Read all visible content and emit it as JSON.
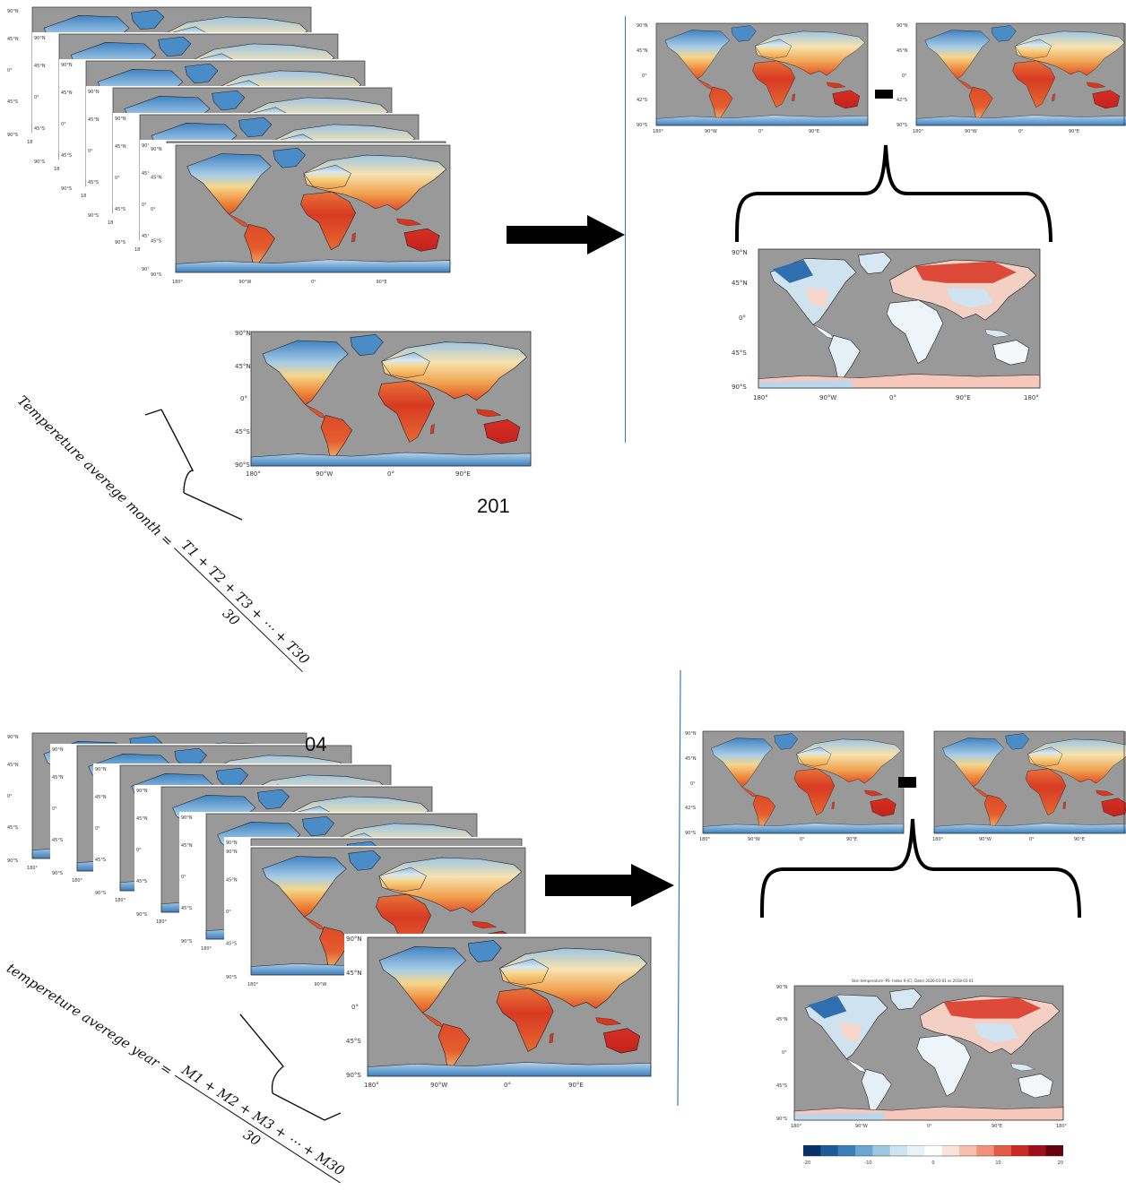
{
  "axes": {
    "lat": [
      "90°N",
      "45°N",
      "0°",
      "45°S",
      "90°S"
    ],
    "lon": [
      "180°",
      "90°W",
      "0°",
      "90°E",
      "180°"
    ],
    "lat_small": [
      "90°N",
      "45°N",
      "0°",
      "42°S",
      "90°S"
    ]
  },
  "labels": {
    "year_201": "201",
    "year_204_partial": "04"
  },
  "formulas": {
    "month": {
      "lhs": "Tempereture averege month =",
      "numerator": "T1 + T2 + T3 + ⋯ + T30",
      "denominator": "30"
    },
    "year": {
      "lhs": "tempereture averege year =",
      "numerator": "M1 + M2 + M3 + ⋯ + M30",
      "denominator": "30"
    }
  },
  "anomaly_title": "Skin temperature -PS- Index 9-(C), Date) 2020-03-01 vs 2018-03-01",
  "colorbar": {
    "ticks": [
      "-20",
      "-10",
      "0",
      "10",
      "20"
    ],
    "colors": [
      "#08306b",
      "#1c5a99",
      "#3a7fb8",
      "#6aa6cf",
      "#9ec8e2",
      "#cce3f0",
      "#e8f2f8",
      "#ffffff",
      "#fbe3dc",
      "#f7c0ad",
      "#f1937a",
      "#e35c47",
      "#c92a25",
      "#9e0e1c",
      "#67000d"
    ]
  },
  "colors": {
    "ocean": "#999999",
    "accent_line": "#3b78c0"
  }
}
